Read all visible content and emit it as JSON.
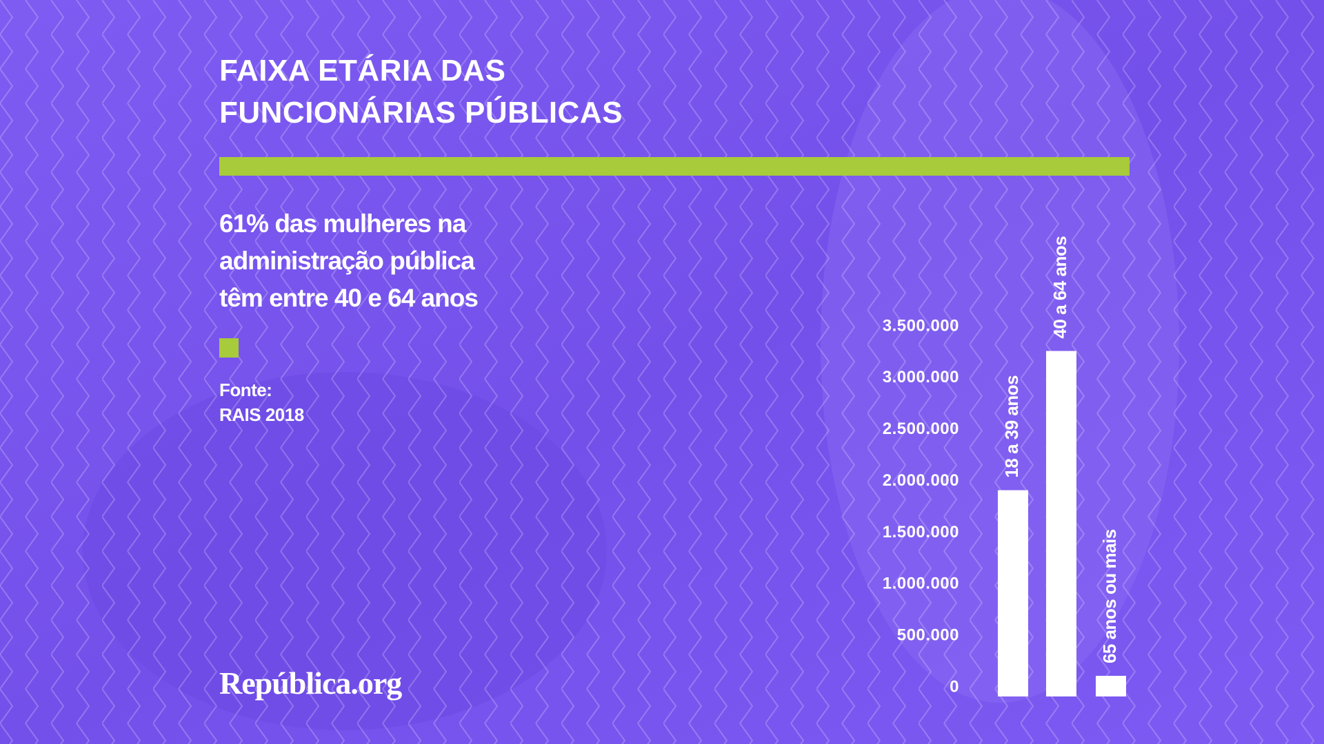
{
  "chart_data": {
    "type": "bar",
    "title": "FAIXA ETÁRIA DAS\nFUNCIONÁRIAS PÚBLICAS",
    "subtitle": "61% das mulheres na\nadministração pública\ntêm entre 40 e 64 anos",
    "annotations": [
      "Fonte:",
      "RAIS 2018",
      "República.org"
    ],
    "categories": [
      "18 a 39 anos",
      "40 a 64 anos",
      "65 anos ou mais"
    ],
    "values": [
      2000000,
      3350000,
      200000
    ],
    "color": "#ffffff",
    "ylim": [
      0,
      3500000
    ],
    "yticks": [
      0,
      {
        "value": 500000,
        "label": "500.000"
      },
      {
        "value": 1000000,
        "label": "1.000.000"
      },
      {
        "value": 1500000,
        "label": "1.500.000"
      },
      {
        "value": 2000000,
        "label": "2.000.000"
      },
      {
        "value": 2500000,
        "label": "2.500.000"
      },
      {
        "value": 3000000,
        "label": "3.000.000"
      },
      {
        "value": 3500000,
        "label": "3.500.000"
      }
    ],
    "grid": false
  }
}
